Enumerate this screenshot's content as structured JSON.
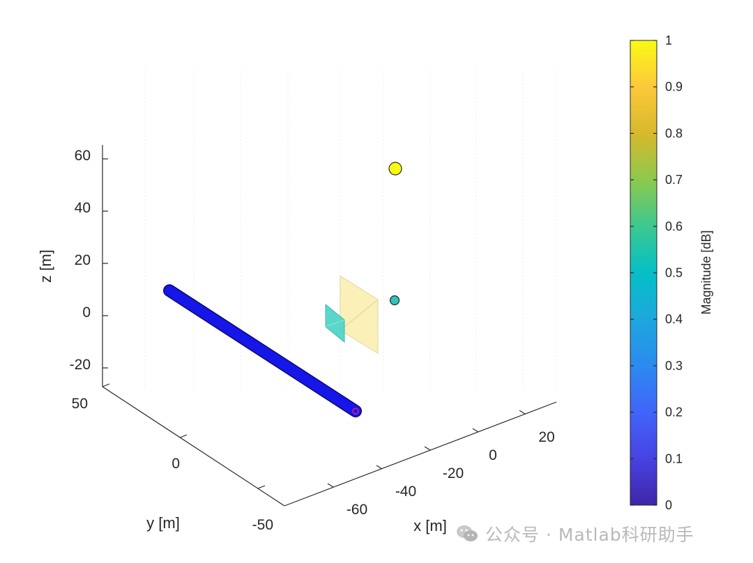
{
  "chart_data": {
    "type": "scatter",
    "xlabel": "x [m]",
    "ylabel": "y [m]",
    "zlabel": "z [m]",
    "x_ticks": [
      "-60",
      "-40",
      "-20",
      "0",
      "20"
    ],
    "y_ticks": [
      "-50",
      "0",
      "50"
    ],
    "z_ticks": [
      "-20",
      "0",
      "20",
      "40",
      "60"
    ],
    "colorbar": {
      "label": "Magnitude [dB]",
      "ticks": [
        "0",
        "0.1",
        "0.2",
        "0.3",
        "0.4",
        "0.5",
        "0.6",
        "0.7",
        "0.8",
        "0.9",
        "1"
      ],
      "range": [
        0,
        1
      ],
      "colormap": "parula"
    },
    "objects": [
      {
        "kind": "sphere",
        "magnitude": 1.0,
        "color": "#f9fb0e"
      },
      {
        "kind": "sphere",
        "magnitude": 0.5,
        "color": "#2ec4b6"
      },
      {
        "kind": "plane",
        "magnitude": 0.85,
        "color": "#f5d76e"
      },
      {
        "kind": "plane",
        "magnitude": 0.5,
        "color": "#36d1c4"
      },
      {
        "kind": "trajectory",
        "magnitude": 0.0,
        "color": "#1313e6"
      }
    ]
  },
  "watermark": "公众号 · Matlab科研助手"
}
